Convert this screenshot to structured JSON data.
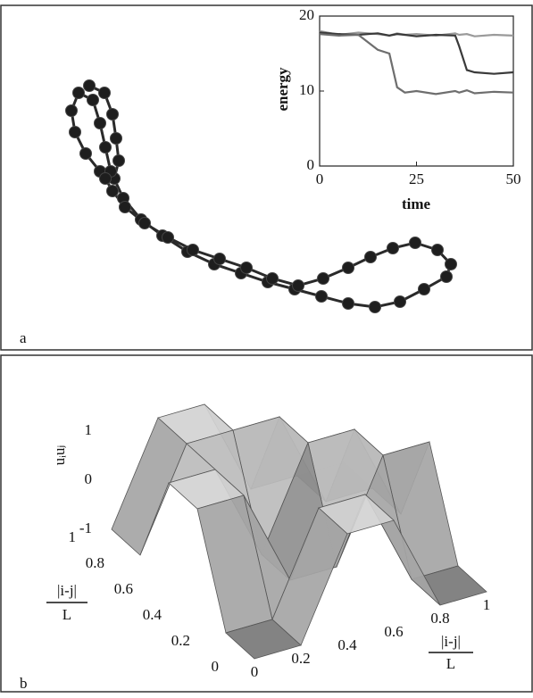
{
  "chart_data": [
    {
      "type": "line",
      "label": "a",
      "xlabel": "time",
      "ylabel": "energy",
      "x": [
        0,
        5,
        10,
        15,
        18,
        20,
        22,
        25,
        30,
        35,
        36,
        38,
        40,
        45,
        50
      ],
      "series": [
        {
          "color": "#9a9a9a",
          "values": [
            18,
            17.5,
            17.8,
            17.6,
            17.4,
            17.7,
            17.5,
            17.6,
            17.4,
            17.7,
            17.5,
            17.6,
            17.3,
            17.5,
            17.4
          ]
        },
        {
          "color": "#3a3a3a",
          "values": [
            17.8,
            17.6,
            17.5,
            17.7,
            17.4,
            17.6,
            17.5,
            17.3,
            17.5,
            17.4,
            16,
            12.8,
            12.5,
            12.3,
            12.5
          ]
        },
        {
          "color": "#6e6e6e",
          "values": [
            17.6,
            17.4,
            17.5,
            15.5,
            15,
            10.5,
            9.8,
            10,
            9.6,
            10,
            9.8,
            10.1,
            9.7,
            9.9,
            9.8
          ]
        }
      ],
      "xlim": [
        0,
        50
      ],
      "ylim": [
        0,
        20
      ],
      "xticks": [
        0,
        25,
        50
      ],
      "yticks": [
        0,
        10,
        20
      ]
    },
    {
      "type": "surface",
      "label": "b",
      "zlabel": "uᵢuⱼ",
      "xlabel": {
        "numerator": "|i-j|",
        "denominator": "L"
      },
      "ylabel": {
        "numerator": "|i-j|",
        "denominator": "L"
      },
      "x": [
        0,
        0.2,
        0.4,
        0.6,
        0.8,
        1
      ],
      "y": [
        0,
        0.2,
        0.4,
        0.6,
        0.8,
        1
      ],
      "z": [
        [
          -1,
          -1,
          1,
          1,
          -1,
          -1
        ],
        [
          -1,
          -1,
          1,
          1,
          -1,
          -1
        ],
        [
          1,
          1,
          -1,
          -1,
          1,
          1
        ],
        [
          1,
          1,
          -1,
          1,
          1,
          -1
        ],
        [
          -1,
          1,
          1,
          1,
          -1,
          -1
        ],
        [
          -1,
          1,
          1,
          -1,
          -1,
          -1
        ]
      ],
      "xlim": [
        0,
        1
      ],
      "ylim": [
        0,
        1
      ],
      "zlim": [
        -1,
        1
      ],
      "xticks": [
        0,
        0.2,
        0.4,
        0.6,
        0.8,
        1
      ],
      "yticks": [
        0,
        0.2,
        0.4,
        0.6,
        0.8,
        1
      ],
      "zticks": [
        -1,
        0,
        1
      ]
    }
  ]
}
